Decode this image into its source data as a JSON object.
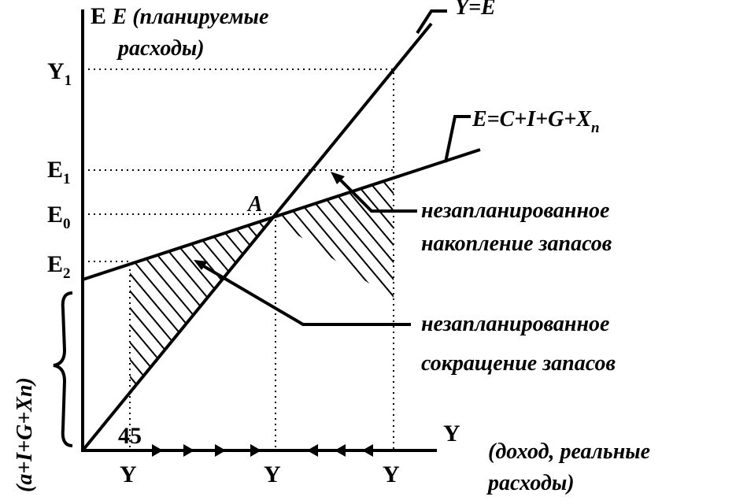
{
  "axes": {
    "vertical_label": [
      "E (планируемые",
      "расходы)"
    ],
    "horizontal_label": "Y",
    "horizontal_caption": [
      "(доход, реальные",
      "расходы)"
    ],
    "angle": "45"
  },
  "lines": {
    "y_equals_e": "Y=E",
    "expenditure": {
      "main": "E=C+I+G+X",
      "sub": "n"
    }
  },
  "ticks": {
    "y1": {
      "main": "Y",
      "sub": "1"
    },
    "e1": {
      "main": "E",
      "sub": "1"
    },
    "e0": {
      "main": "E",
      "sub": "0"
    },
    "e2": {
      "main": "E",
      "sub": "2"
    }
  },
  "point": "A",
  "bottom_labels": [
    "Y",
    "Y",
    "Y"
  ],
  "intercept": "(a+I+G+Xn)",
  "annotations": [
    [
      "незапланированное",
      "накопление запасов"
    ],
    [
      "незапланированное",
      "сокращение запасов"
    ]
  ]
}
